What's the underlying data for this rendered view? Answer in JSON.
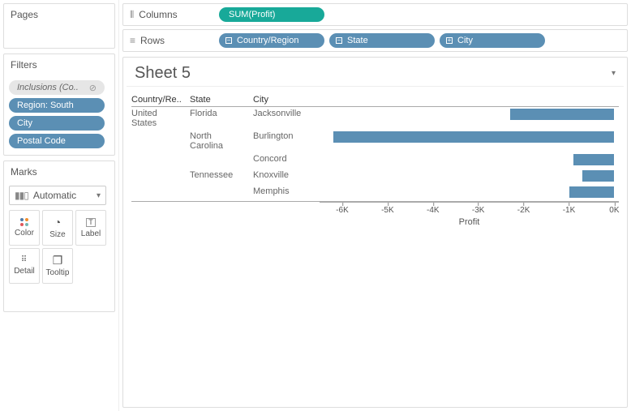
{
  "panels": {
    "pages": "Pages",
    "filters": "Filters",
    "marks": "Marks"
  },
  "filters": {
    "inclusions": "Inclusions (Co..",
    "region": "Region: South",
    "city": "City",
    "postal": "Postal Code"
  },
  "marks": {
    "type": "Automatic",
    "color": "Color",
    "size": "Size",
    "label": "Label",
    "detail": "Detail",
    "tooltip": "Tooltip"
  },
  "shelves": {
    "columns": "Columns",
    "rows": "Rows",
    "measure": "SUM(Profit)",
    "dim1": "Country/Region",
    "dim2": "State",
    "dim3": "City"
  },
  "sheet": {
    "title": "Sheet 5"
  },
  "headers": {
    "country": "Country/Re..",
    "state": "State",
    "city": "City"
  },
  "axis": {
    "label": "Profit",
    "min": -6500,
    "max": 100,
    "ticks": [
      {
        "v": -6000,
        "label": "-6K"
      },
      {
        "v": -5000,
        "label": "-5K"
      },
      {
        "v": -4000,
        "label": "-4K"
      },
      {
        "v": -3000,
        "label": "-3K"
      },
      {
        "v": -2000,
        "label": "-2K"
      },
      {
        "v": -1000,
        "label": "-1K"
      },
      {
        "v": 0,
        "label": "0K"
      }
    ]
  },
  "rows": [
    {
      "country": "United States",
      "state": "Florida",
      "city": "Jacksonville",
      "value": -2300
    },
    {
      "country": "",
      "state": "North Carolina",
      "city": "Burlington",
      "value": -6200
    },
    {
      "country": "",
      "state": "",
      "city": "Concord",
      "value": -900
    },
    {
      "country": "",
      "state": "Tennessee",
      "city": "Knoxville",
      "value": -700
    },
    {
      "country": "",
      "state": "",
      "city": "Memphis",
      "value": -1000
    }
  ],
  "colors": {
    "bar": "#5b8fb4",
    "cd1": "#4e79a7",
    "cd2": "#f28e2b",
    "cd3": "#e15759",
    "cd4": "#76b7b2"
  }
}
